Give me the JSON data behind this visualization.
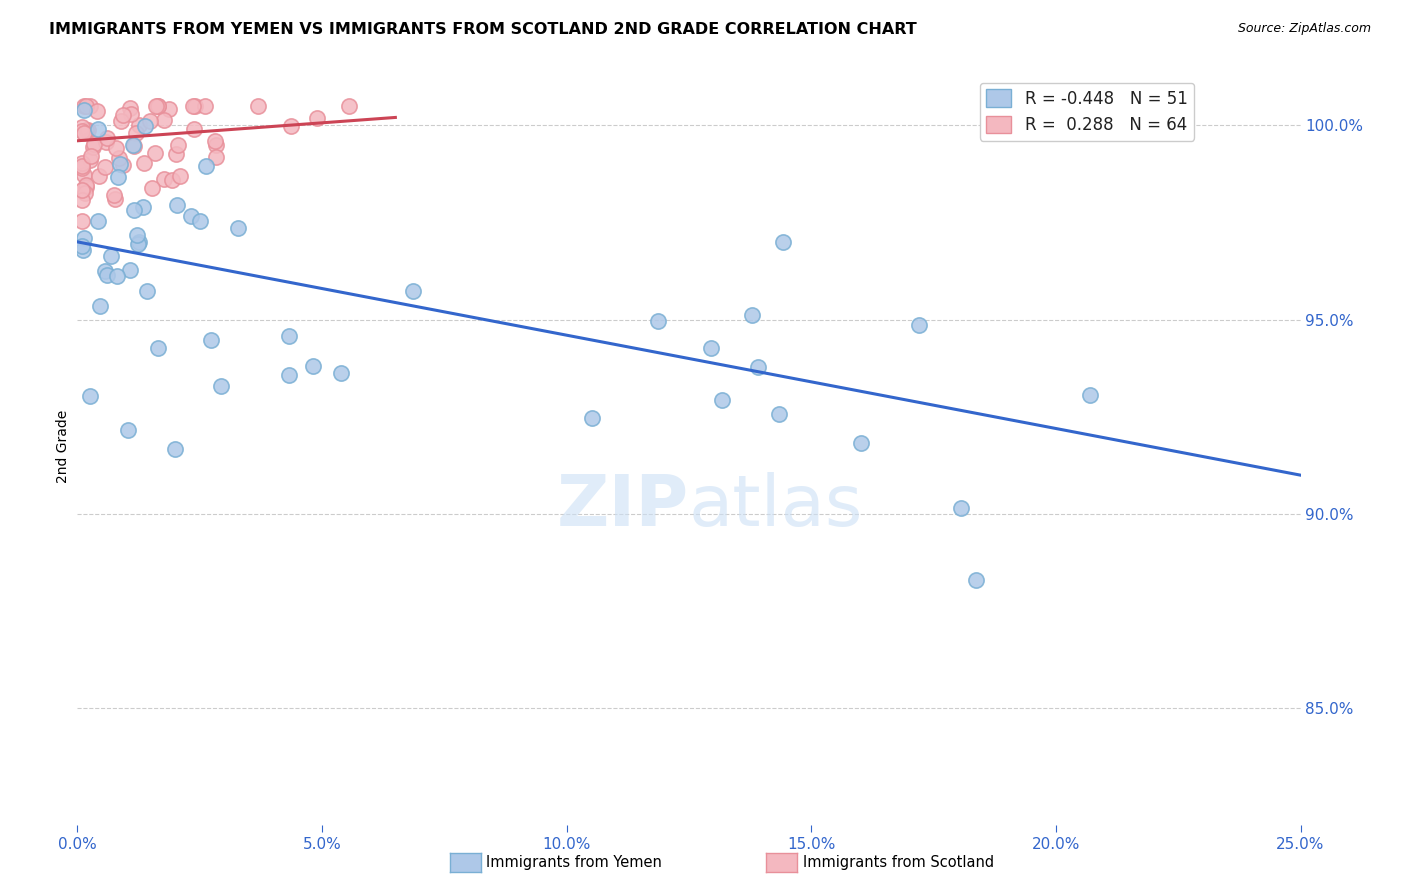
{
  "title": "IMMIGRANTS FROM YEMEN VS IMMIGRANTS FROM SCOTLAND 2ND GRADE CORRELATION CHART",
  "source": "Source: ZipAtlas.com",
  "ylabel": "2nd Grade",
  "xlim": [
    0.0,
    0.25
  ],
  "ylim": [
    0.82,
    1.015
  ],
  "blue_R": -0.448,
  "blue_N": 51,
  "pink_R": 0.288,
  "pink_N": 64,
  "blue_color": "#aec8e8",
  "blue_edge": "#7aafd4",
  "pink_color": "#f4b8c0",
  "pink_edge": "#e8909a",
  "blue_line_color": "#3366cc",
  "pink_line_color": "#cc4455",
  "background_color": "#ffffff",
  "legend_label_blue": "Immigrants from Yemen",
  "legend_label_pink": "Immigrants from Scotland",
  "blue_line_x0": 0.0,
  "blue_line_y0": 0.97,
  "blue_line_x1": 0.25,
  "blue_line_y1": 0.91,
  "pink_line_x0": 0.0,
  "pink_line_y0": 0.996,
  "pink_line_x1": 0.065,
  "pink_line_y1": 1.002
}
